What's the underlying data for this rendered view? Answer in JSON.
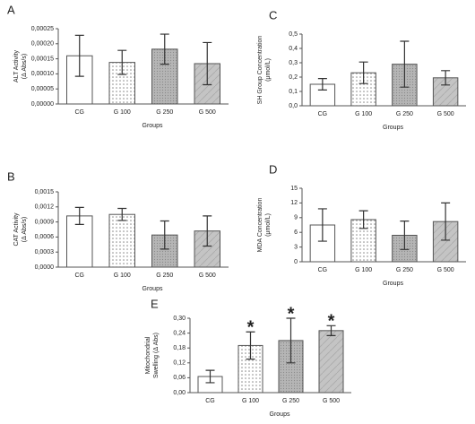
{
  "chart_data": [
    {
      "type": "bar",
      "label": "A",
      "y_label": [
        "ALT Activity",
        "(Δ Abs/s)"
      ],
      "x_label": "Groups",
      "categories": [
        "CG",
        "G 100",
        "G 250",
        "G 500"
      ],
      "values": [
        0.00016,
        0.000138,
        0.000182,
        0.000134
      ],
      "errors": [
        6.8e-05,
        4e-05,
        5e-05,
        7e-05
      ],
      "ylim": [
        0,
        0.00025
      ],
      "yticks": [
        {
          "value": 0,
          "label": "0,00000"
        },
        {
          "value": 5e-05,
          "label": "0,00005"
        },
        {
          "value": 0.0001,
          "label": "0,00010"
        },
        {
          "value": 0.00015,
          "label": "0,00015"
        },
        {
          "value": 0.0002,
          "label": "0,00020"
        },
        {
          "value": 0.00025,
          "label": "0,00025"
        }
      ]
    },
    {
      "type": "bar",
      "label": "C",
      "y_label": [
        "SH Group Concentration",
        "(μmol/L)"
      ],
      "x_label": "Groups",
      "categories": [
        "CG",
        "G 100",
        "G 250",
        "G 500"
      ],
      "values": [
        0.15,
        0.23,
        0.29,
        0.195
      ],
      "errors": [
        0.04,
        0.075,
        0.16,
        0.05
      ],
      "ylim": [
        0,
        0.5
      ],
      "yticks": [
        {
          "value": 0,
          "label": "0,0"
        },
        {
          "value": 0.1,
          "label": "0,1"
        },
        {
          "value": 0.2,
          "label": "0,2"
        },
        {
          "value": 0.3,
          "label": "0,3"
        },
        {
          "value": 0.4,
          "label": "0,4"
        },
        {
          "value": 0.5,
          "label": "0,5"
        }
      ]
    },
    {
      "type": "bar",
      "label": "B",
      "y_label": [
        "CAT Activity",
        "(Δ Abs/s)"
      ],
      "x_label": "Groups",
      "categories": [
        "CG",
        "G 100",
        "G 250",
        "G 500"
      ],
      "values": [
        0.00102,
        0.00105,
        0.00064,
        0.00072
      ],
      "errors": [
        0.00017,
        0.00012,
        0.00028,
        0.0003
      ],
      "ylim": [
        0,
        0.0015
      ],
      "yticks": [
        {
          "value": 0,
          "label": "0,0000"
        },
        {
          "value": 0.0003,
          "label": "0,0003"
        },
        {
          "value": 0.0006,
          "label": "0,0006"
        },
        {
          "value": 0.0009,
          "label": "0,0009"
        },
        {
          "value": 0.0012,
          "label": "0,0012"
        },
        {
          "value": 0.0015,
          "label": "0,0015"
        }
      ]
    },
    {
      "type": "bar",
      "label": "D",
      "y_label": [
        "MDA Concentration",
        "(μmol/L)"
      ],
      "x_label": "Groups",
      "categories": [
        "CG",
        "G 100",
        "G 250",
        "G 500"
      ],
      "values": [
        7.5,
        8.6,
        5.4,
        8.2
      ],
      "errors": [
        3.3,
        1.8,
        2.9,
        3.8
      ],
      "ylim": [
        0,
        15
      ],
      "yticks": [
        0,
        3,
        6,
        9,
        12,
        15
      ]
    },
    {
      "type": "bar",
      "label": "E",
      "y_label": [
        "Mitochondrial",
        "Swelling (Δ Abs)"
      ],
      "x_label": "Groups",
      "categories": [
        "CG",
        "G 100",
        "G 250",
        "G 500"
      ],
      "values": [
        0.065,
        0.19,
        0.21,
        0.25
      ],
      "errors": [
        0.025,
        0.055,
        0.09,
        0.02
      ],
      "annotations": [
        null,
        "*",
        "*",
        "*"
      ],
      "ylim": [
        0,
        0.3
      ],
      "yticks": [
        {
          "value": 0,
          "label": "0,00"
        },
        {
          "value": 0.06,
          "label": "0,06"
        },
        {
          "value": 0.12,
          "label": "0,12"
        },
        {
          "value": 0.18,
          "label": "0,18"
        },
        {
          "value": 0.24,
          "label": "0,24"
        },
        {
          "value": 0.3,
          "label": "0,30"
        }
      ]
    }
  ]
}
